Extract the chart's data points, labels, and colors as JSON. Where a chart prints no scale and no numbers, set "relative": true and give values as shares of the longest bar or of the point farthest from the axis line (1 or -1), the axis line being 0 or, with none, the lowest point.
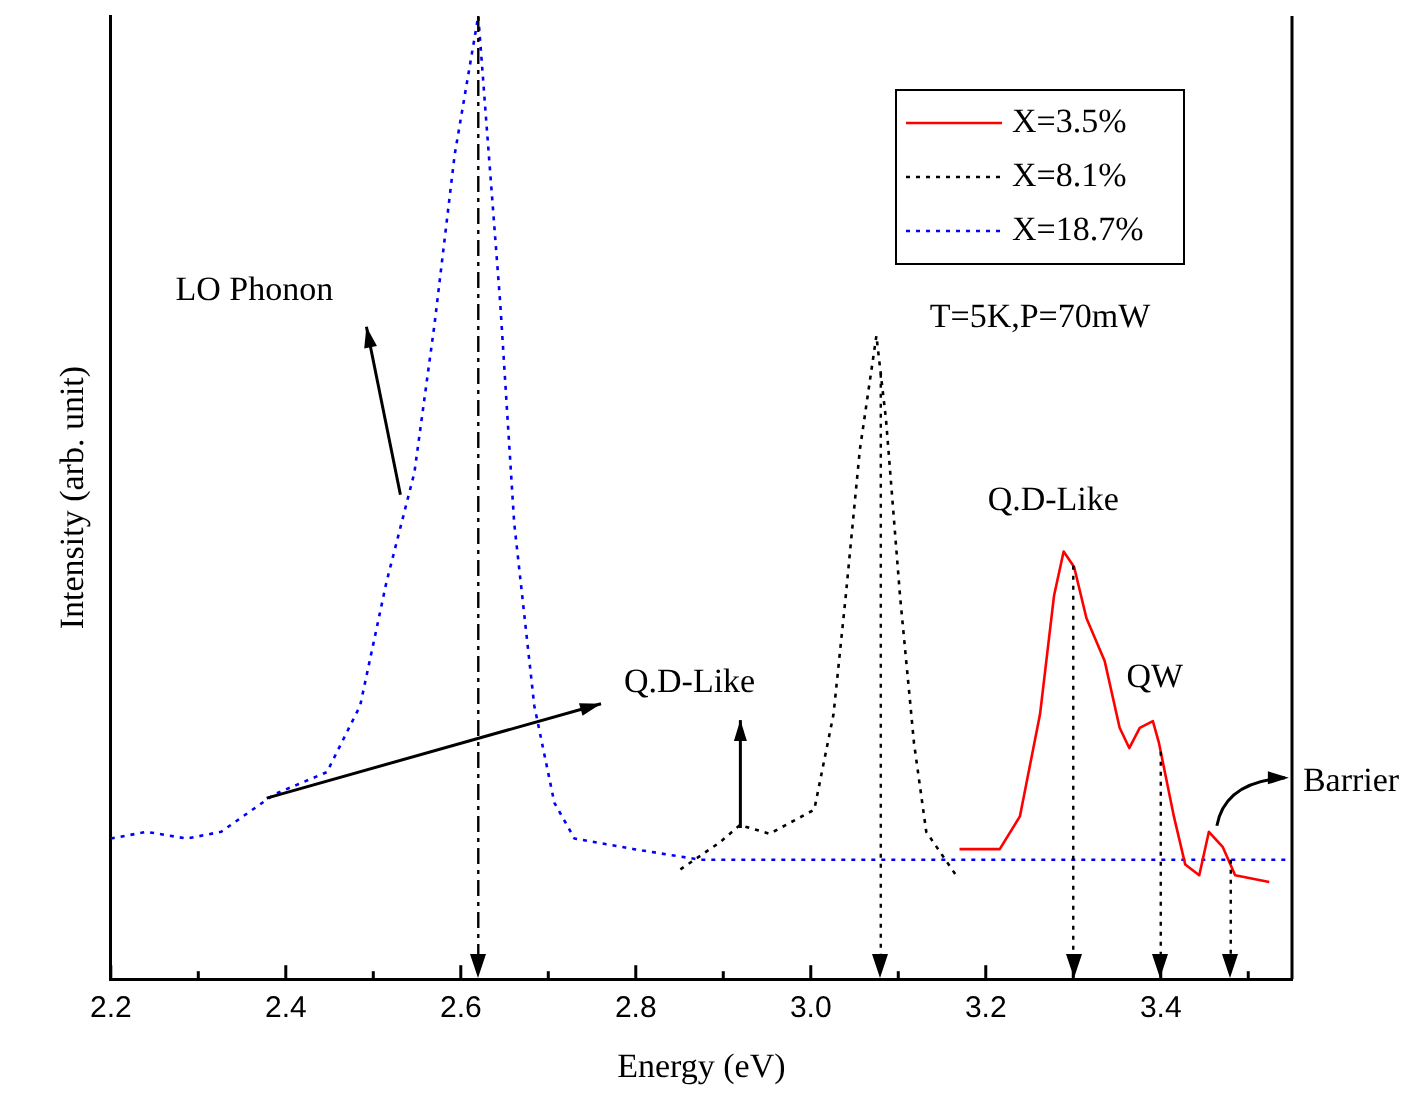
{
  "chart_data": {
    "type": "line",
    "relative": true,
    "xlabel": "Energy (eV)",
    "ylabel": "Intensity (arb. unit)",
    "xlim": [
      2.2,
      3.55
    ],
    "xticks": [
      2.2,
      {
        "value": 2.3,
        "label": null
      },
      2.4,
      {
        "value": 2.5,
        "label": null
      },
      2.6,
      {
        "value": 2.7,
        "label": null
      },
      2.8,
      {
        "value": 2.9,
        "label": null
      },
      {
        "value": 3.0,
        "label": "3.0"
      },
      {
        "value": 3.1,
        "label": null
      },
      3.2,
      {
        "value": 3.3,
        "label": null
      },
      3.4,
      {
        "value": 3.5,
        "label": null
      }
    ],
    "legend": "top right",
    "grid": false,
    "marker": "none",
    "series": [
      {
        "name": "X=3.5%",
        "color": "#ff0000",
        "line_style": "solid",
        "x": [
          3.17,
          3.216,
          3.239,
          3.262,
          3.278,
          3.289,
          3.301,
          3.315,
          3.336,
          3.353,
          3.364,
          3.376,
          3.391,
          3.398,
          3.415,
          3.428,
          3.444,
          3.455,
          3.471,
          3.485,
          3.524
        ],
        "values": [
          0.135,
          0.135,
          0.169,
          0.275,
          0.398,
          0.444,
          0.428,
          0.375,
          0.33,
          0.261,
          0.24,
          0.261,
          0.268,
          0.245,
          0.169,
          0.119,
          0.108,
          0.153,
          0.137,
          0.108,
          0.101
        ]
      },
      {
        "name": "X=8.1%",
        "color": "#000000",
        "line_style": "dotted",
        "x": [
          2.851,
          2.896,
          2.919,
          2.953,
          3.004,
          3.026,
          3.04,
          3.056,
          3.075,
          3.086,
          3.102,
          3.118,
          3.132,
          3.166
        ],
        "values": [
          0.114,
          0.142,
          0.16,
          0.151,
          0.176,
          0.275,
          0.398,
          0.549,
          0.668,
          0.581,
          0.398,
          0.245,
          0.153,
          0.108
        ]
      },
      {
        "name": "X=18.7%",
        "color": "#0000ff",
        "line_style": "dotted",
        "x": [
          2.2,
          2.241,
          2.287,
          2.326,
          2.387,
          2.447,
          2.485,
          2.515,
          2.547,
          2.57,
          2.593,
          2.62,
          2.629,
          2.645,
          2.661,
          2.684,
          2.707,
          2.73,
          2.798,
          2.874,
          3.0,
          3.2,
          3.4,
          3.55
        ],
        "values": [
          0.146,
          0.153,
          0.146,
          0.153,
          0.192,
          0.215,
          0.284,
          0.412,
          0.526,
          0.68,
          0.856,
          1,
          0.892,
          0.703,
          0.474,
          0.284,
          0.183,
          0.146,
          0.135,
          0.124,
          0.124,
          0.124,
          0.124,
          0.124
        ]
      }
    ],
    "ref_lines": [
      {
        "axis": "x",
        "value": 2.62,
        "label": null,
        "color": "#000000",
        "line_style": "dashed"
      },
      {
        "axis": "x",
        "value": 3.08,
        "label": null,
        "color": "#000000",
        "line_style": "dotted"
      },
      {
        "axis": "x",
        "value": 3.3,
        "label": null,
        "color": "#000000",
        "line_style": "dotted"
      },
      {
        "axis": "x",
        "value": 3.4,
        "label": null,
        "color": "#000000",
        "line_style": "dotted"
      },
      {
        "axis": "x",
        "value": 3.48,
        "label": null,
        "color": "#000000",
        "line_style": "dotted"
      }
    ],
    "annotations": [
      {
        "text": "LO Phonon",
        "x": 2.531,
        "y": 0.503
      },
      "Q.D-Like",
      {
        "text": "Q.D-Like",
        "x": 3.3,
        "y": 0.444
      },
      {
        "text": "QW",
        "x": 3.4,
        "y": 0.261
      },
      {
        "text": "Barrier",
        "x": 3.455,
        "y": 0.153
      },
      "T=5K,P=70mW"
    ]
  }
}
